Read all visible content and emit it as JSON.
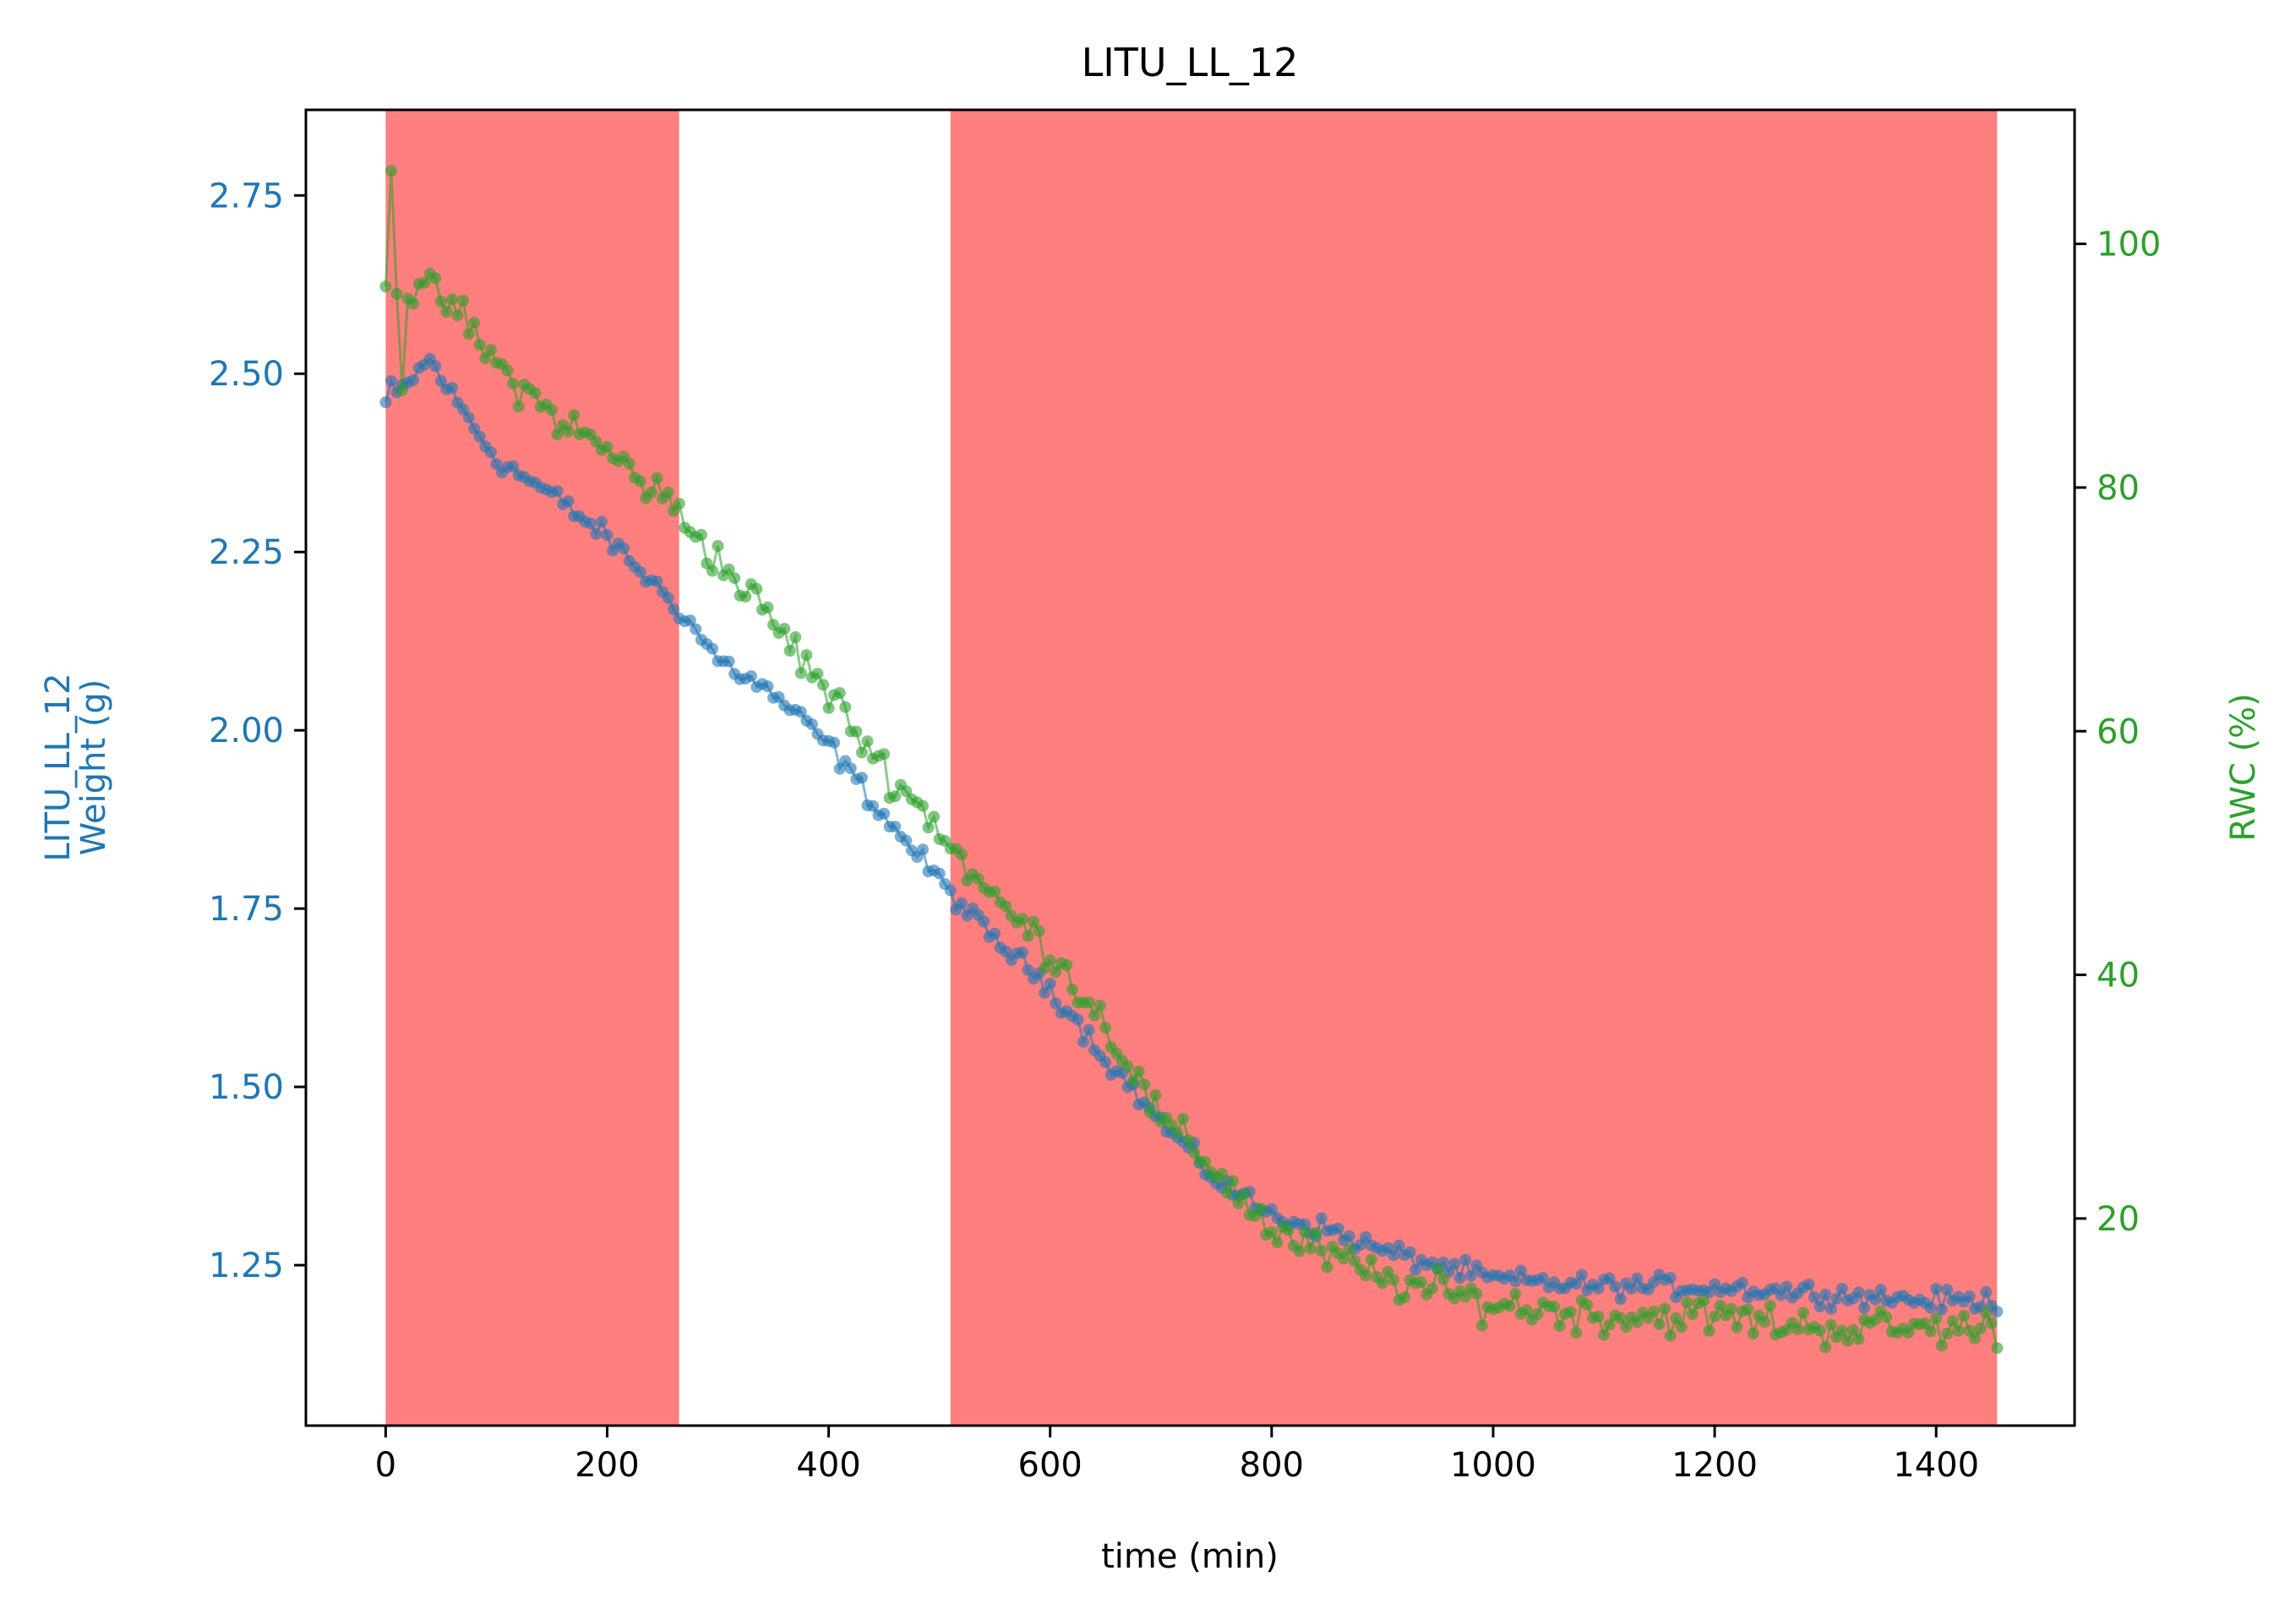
{
  "chart_data": {
    "type": "line",
    "title": "LITU_LL_12",
    "xlabel": "time (min)",
    "ylabel_left_line1": "LITU_LL_12",
    "ylabel_left_line2": "Weight (g)",
    "ylabel_right": "RWC (%)",
    "xlim": [
      -72,
      1525
    ],
    "ylim_left": [
      1.025,
      2.87
    ],
    "ylim_right": [
      3,
      111
    ],
    "xticks": [
      0,
      200,
      400,
      600,
      800,
      1000,
      1200,
      1400
    ],
    "yticks_left": [
      1.25,
      1.5,
      1.75,
      2.0,
      2.25,
      2.5,
      2.75
    ],
    "yticks_left_labels": [
      "1.25",
      "1.50",
      "1.75",
      "2.00",
      "2.25",
      "2.50",
      "2.75"
    ],
    "yticks_right": [
      20,
      40,
      60,
      80,
      100
    ],
    "shaded_intervals": [
      [
        0,
        265
      ],
      [
        510,
        1455
      ]
    ],
    "grid": false,
    "colors": {
      "weight": "#1f77b4",
      "rwc": "#2ca02c",
      "shade": "#ff7f7f",
      "axis": "#000000"
    },
    "series_knots": {
      "weight": [
        [
          0,
          2.46
        ],
        [
          10,
          2.47
        ],
        [
          40,
          2.52
        ],
        [
          60,
          2.47
        ],
        [
          100,
          2.38
        ],
        [
          150,
          2.33
        ],
        [
          200,
          2.27
        ],
        [
          265,
          2.17
        ],
        [
          300,
          2.1
        ],
        [
          350,
          2.05
        ],
        [
          400,
          1.98
        ],
        [
          450,
          1.88
        ],
        [
          500,
          1.79
        ],
        [
          540,
          1.72
        ],
        [
          600,
          1.64
        ],
        [
          650,
          1.54
        ],
        [
          700,
          1.45
        ],
        [
          750,
          1.37
        ],
        [
          800,
          1.32
        ],
        [
          850,
          1.3
        ],
        [
          900,
          1.27
        ],
        [
          950,
          1.25
        ],
        [
          1000,
          1.23
        ],
        [
          1100,
          1.22
        ],
        [
          1200,
          1.22
        ],
        [
          1300,
          1.21
        ],
        [
          1400,
          1.2
        ],
        [
          1455,
          1.2
        ]
      ],
      "rwc": [
        [
          0,
          97
        ],
        [
          10,
          96
        ],
        [
          40,
          96
        ],
        [
          60,
          95
        ],
        [
          100,
          90
        ],
        [
          150,
          86
        ],
        [
          200,
          83
        ],
        [
          265,
          78
        ],
        [
          300,
          74
        ],
        [
          350,
          69
        ],
        [
          400,
          63
        ],
        [
          450,
          57
        ],
        [
          500,
          52
        ],
        [
          540,
          47
        ],
        [
          600,
          42
        ],
        [
          650,
          36
        ],
        [
          700,
          28
        ],
        [
          750,
          24
        ],
        [
          800,
          19
        ],
        [
          850,
          17
        ],
        [
          900,
          15
        ],
        [
          950,
          14
        ],
        [
          1000,
          13
        ],
        [
          1100,
          12
        ],
        [
          1200,
          12
        ],
        [
          1300,
          11
        ],
        [
          1400,
          11
        ],
        [
          1455,
          11
        ]
      ]
    },
    "sample_step_min": 5,
    "noise": {
      "weight": 0.022,
      "rwc": 2.3
    }
  }
}
